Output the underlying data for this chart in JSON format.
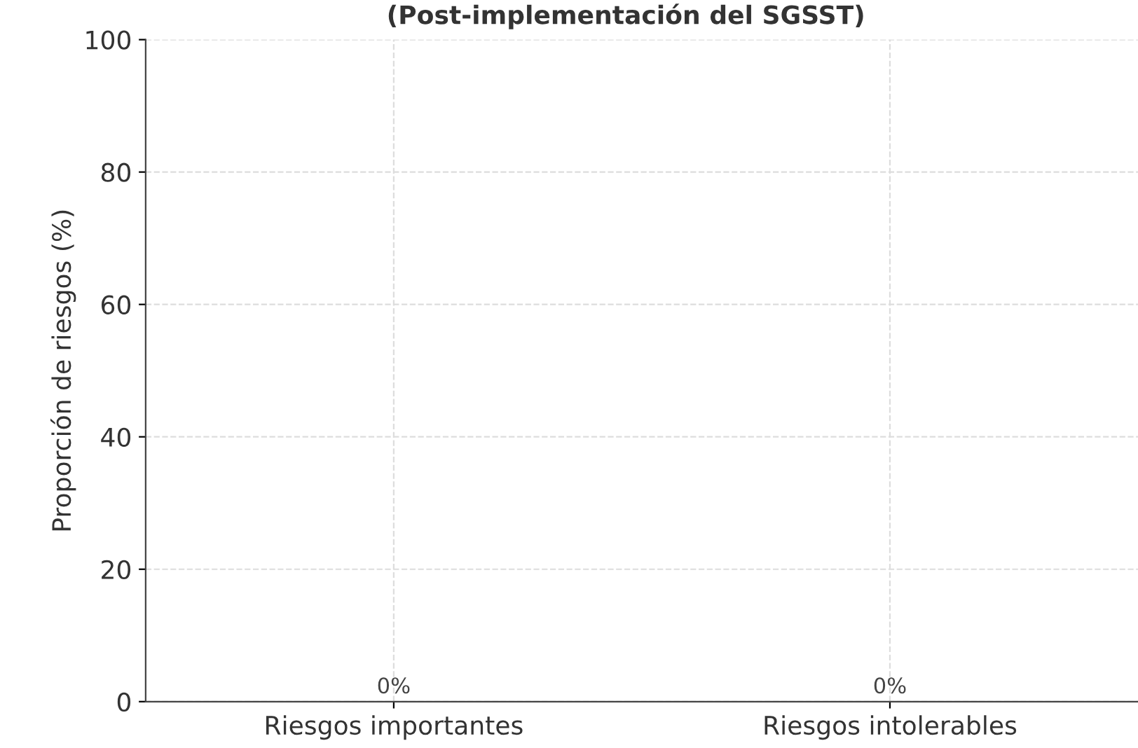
{
  "chart_data": {
    "type": "bar",
    "title": "(Post-implementación del SGSST)",
    "ylabel": "Proporción de riesgos (%)",
    "categories": [
      "Riesgos importantes",
      "Riesgos intolerables"
    ],
    "values": [
      0,
      0
    ],
    "value_labels": [
      "0%",
      "0%"
    ],
    "ylim": [
      0,
      100
    ],
    "yticks": [
      0,
      20,
      40,
      60,
      80,
      100
    ],
    "grid": true
  }
}
